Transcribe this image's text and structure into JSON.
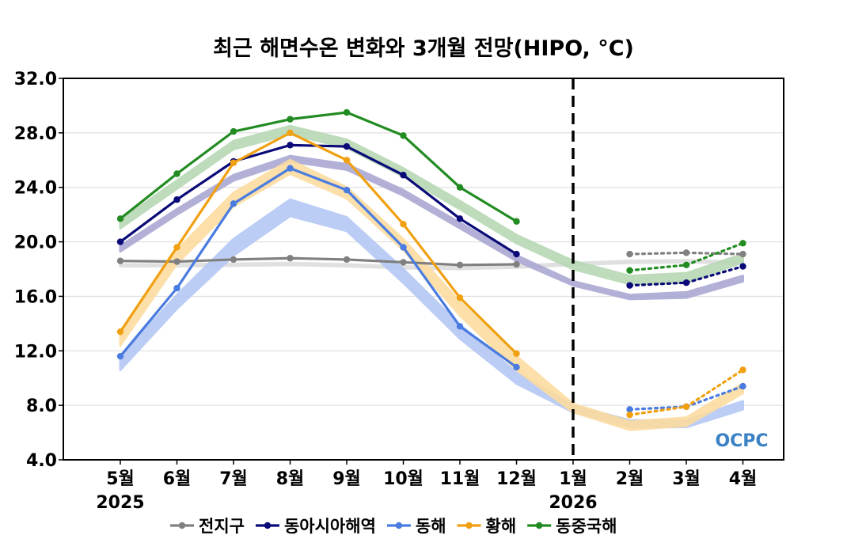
{
  "chart_data": {
    "type": "line",
    "title": "최근 해면수온 변화와 3개월 전망(HIPO, °C)",
    "categories": [
      "5월",
      "6월",
      "7월",
      "8월",
      "9월",
      "10월",
      "11월",
      "12월",
      "1월",
      "2월",
      "3월",
      "4월"
    ],
    "year_labels": [
      {
        "category": "5월",
        "label": "2025"
      },
      {
        "category": "1월",
        "label": "2026"
      }
    ],
    "ylim": [
      4.0,
      32.0
    ],
    "yticks": [
      "4.0",
      "8.0",
      "12.0",
      "16.0",
      "20.0",
      "24.0",
      "28.0",
      "32.0"
    ],
    "divider_category": "1월",
    "grid": true,
    "legend_position": "bottom",
    "logo_text": "OCPC",
    "series": [
      {
        "name": "전지구",
        "color": "#808080",
        "band_color": "#dddddd",
        "observed": [
          18.6,
          18.55,
          18.7,
          18.8,
          18.7,
          18.5,
          18.3,
          18.35,
          null,
          null,
          null,
          null
        ],
        "forecast": [
          null,
          null,
          null,
          null,
          null,
          null,
          null,
          null,
          null,
          19.1,
          19.2,
          19.1
        ],
        "climatology_low": [
          18.2,
          18.2,
          18.25,
          18.3,
          18.2,
          18.05,
          18.0,
          18.1,
          18.3,
          18.45,
          18.5,
          18.4
        ],
        "climatology_high": [
          18.35,
          18.35,
          18.4,
          18.45,
          18.35,
          18.2,
          18.15,
          18.25,
          18.45,
          18.6,
          18.65,
          18.55
        ]
      },
      {
        "name": "동아시아해역",
        "color": "#0a0a78",
        "band_color": "#aaa8d2",
        "observed": [
          20.0,
          23.1,
          25.9,
          27.1,
          27.0,
          24.9,
          21.7,
          19.1,
          null,
          null,
          null,
          null
        ],
        "forecast": [
          null,
          null,
          null,
          null,
          null,
          null,
          null,
          null,
          null,
          16.8,
          17.0,
          18.2
        ],
        "climatology_low": [
          19.3,
          22.0,
          24.5,
          25.9,
          25.3,
          23.4,
          21.0,
          18.6,
          16.8,
          15.8,
          15.9,
          17.1
        ],
        "climatology_high": [
          19.7,
          22.4,
          24.9,
          26.3,
          25.7,
          23.8,
          21.4,
          19.0,
          17.1,
          16.1,
          16.3,
          17.5
        ]
      },
      {
        "name": "동해",
        "color": "#4a7be0",
        "band_color": "#b4c8f5",
        "observed": [
          11.6,
          16.6,
          22.8,
          25.4,
          23.8,
          19.6,
          13.8,
          10.8,
          null,
          null,
          null,
          null
        ],
        "forecast": [
          null,
          null,
          null,
          null,
          null,
          null,
          null,
          null,
          null,
          7.7,
          7.9,
          9.4
        ],
        "climatology_low": [
          10.6,
          15.1,
          19.0,
          21.9,
          20.8,
          17.0,
          12.9,
          9.6,
          7.5,
          6.4,
          6.4,
          7.7
        ],
        "climatology_high": [
          11.6,
          16.1,
          20.2,
          23.1,
          21.8,
          18.0,
          13.9,
          10.4,
          8.0,
          6.9,
          6.9,
          8.3
        ]
      },
      {
        "name": "황해",
        "color": "#f0a010",
        "band_color": "#fcdca0",
        "observed": [
          13.4,
          19.6,
          25.8,
          28.0,
          26.0,
          21.3,
          15.9,
          11.8,
          null,
          null,
          null,
          null
        ],
        "forecast": [
          null,
          null,
          null,
          null,
          null,
          null,
          null,
          null,
          null,
          7.3,
          7.9,
          10.6
        ],
        "climatology_low": [
          12.4,
          18.4,
          22.6,
          25.0,
          23.2,
          19.4,
          14.6,
          10.6,
          7.5,
          6.2,
          6.5,
          8.9
        ],
        "climatology_high": [
          13.4,
          19.4,
          23.6,
          26.0,
          24.0,
          20.2,
          15.6,
          11.6,
          8.1,
          6.8,
          7.1,
          9.6
        ]
      },
      {
        "name": "동중국해",
        "color": "#228b22",
        "band_color": "#b7d9b5",
        "observed": [
          21.7,
          25.0,
          28.1,
          29.0,
          29.5,
          27.8,
          24.0,
          21.5,
          null,
          null,
          null,
          null
        ],
        "forecast": [
          null,
          null,
          null,
          null,
          null,
          null,
          null,
          null,
          null,
          17.9,
          18.3,
          19.9
        ],
        "climatology_low": [
          21.0,
          23.9,
          26.8,
          27.9,
          26.9,
          24.8,
          22.4,
          19.9,
          18.0,
          16.9,
          17.0,
          18.5
        ],
        "climatology_high": [
          21.6,
          24.5,
          27.4,
          28.5,
          27.5,
          25.4,
          23.0,
          20.5,
          18.6,
          17.5,
          17.7,
          19.1
        ]
      }
    ]
  }
}
